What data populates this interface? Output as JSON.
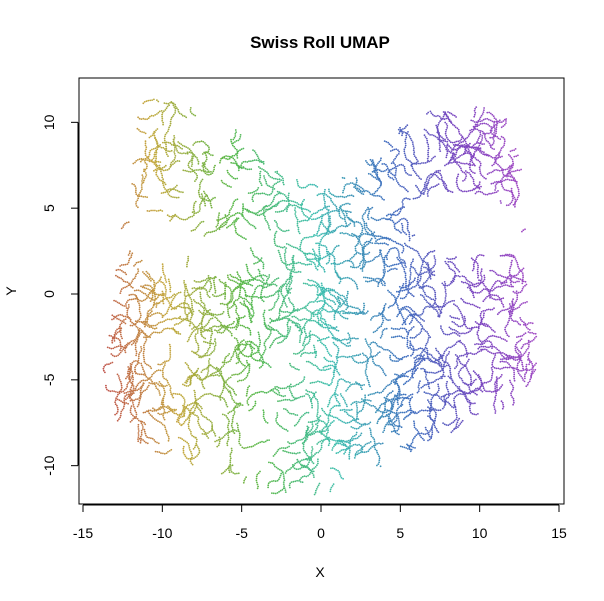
{
  "chart_data": {
    "type": "scatter",
    "title": "Swiss Roll UMAP",
    "xlabel": "X",
    "ylabel": "Y",
    "xlim": [
      -15,
      15
    ],
    "ylim": [
      -12,
      12
    ],
    "x_ticks": [
      "-15",
      "-10",
      "-5",
      "0",
      "5",
      "10",
      "15"
    ],
    "y_ticks": [
      "-10",
      "-5",
      "0",
      "5",
      "10"
    ],
    "grid": false,
    "legend": "none",
    "color_gradient": [
      "#c0504d",
      "#c4a93f",
      "#57b848",
      "#3fbfb0",
      "#3f6fbf",
      "#7b45c0",
      "#b04fc6"
    ],
    "point_count_estimate": 9000,
    "cloud_outline": {
      "description": "approximate boundary of the embedded point cloud, data units",
      "top_edge": [
        [
          -11.5,
          11.5
        ],
        [
          -9,
          11.2
        ],
        [
          -6,
          10.2
        ],
        [
          -4,
          8.3
        ],
        [
          -2.5,
          7.0
        ],
        [
          0,
          6.3
        ],
        [
          2,
          7.0
        ],
        [
          4,
          9.0
        ],
        [
          6,
          10.5
        ],
        [
          9,
          11
        ],
        [
          11.5,
          10.8
        ]
      ],
      "right_edge": [
        [
          11.5,
          10.8
        ],
        [
          12.5,
          8
        ],
        [
          13,
          5
        ],
        [
          12.8,
          2
        ],
        [
          13.2,
          -1
        ],
        [
          14,
          -4
        ],
        [
          14.2,
          -5.5
        ],
        [
          12,
          -6.5
        ],
        [
          10,
          -7.5
        ]
      ],
      "bottom_edge": [
        [
          10,
          -7.5
        ],
        [
          7,
          -8.5
        ],
        [
          4,
          -10
        ],
        [
          1,
          -11.5
        ],
        [
          -2,
          -12
        ],
        [
          -5,
          -11
        ],
        [
          -8,
          -10
        ],
        [
          -11,
          -9
        ],
        [
          -13,
          -7.5
        ],
        [
          -14.2,
          -5.5
        ]
      ],
      "left_edge": [
        [
          -14.2,
          -5.5
        ],
        [
          -13.5,
          -3
        ],
        [
          -13,
          0
        ],
        [
          -12.8,
          3
        ],
        [
          -12,
          6
        ],
        [
          -11.5,
          11.5
        ]
      ],
      "gaps": [
        {
          "center": [
            9,
            4
          ],
          "rx": 3.2,
          "ry": 1.8
        },
        {
          "center": [
            -10,
            3
          ],
          "rx": 2.2,
          "ry": 1.2
        },
        {
          "center": [
            -6.5,
            2
          ],
          "rx": 1.5,
          "ry": 1.0
        }
      ]
    }
  }
}
